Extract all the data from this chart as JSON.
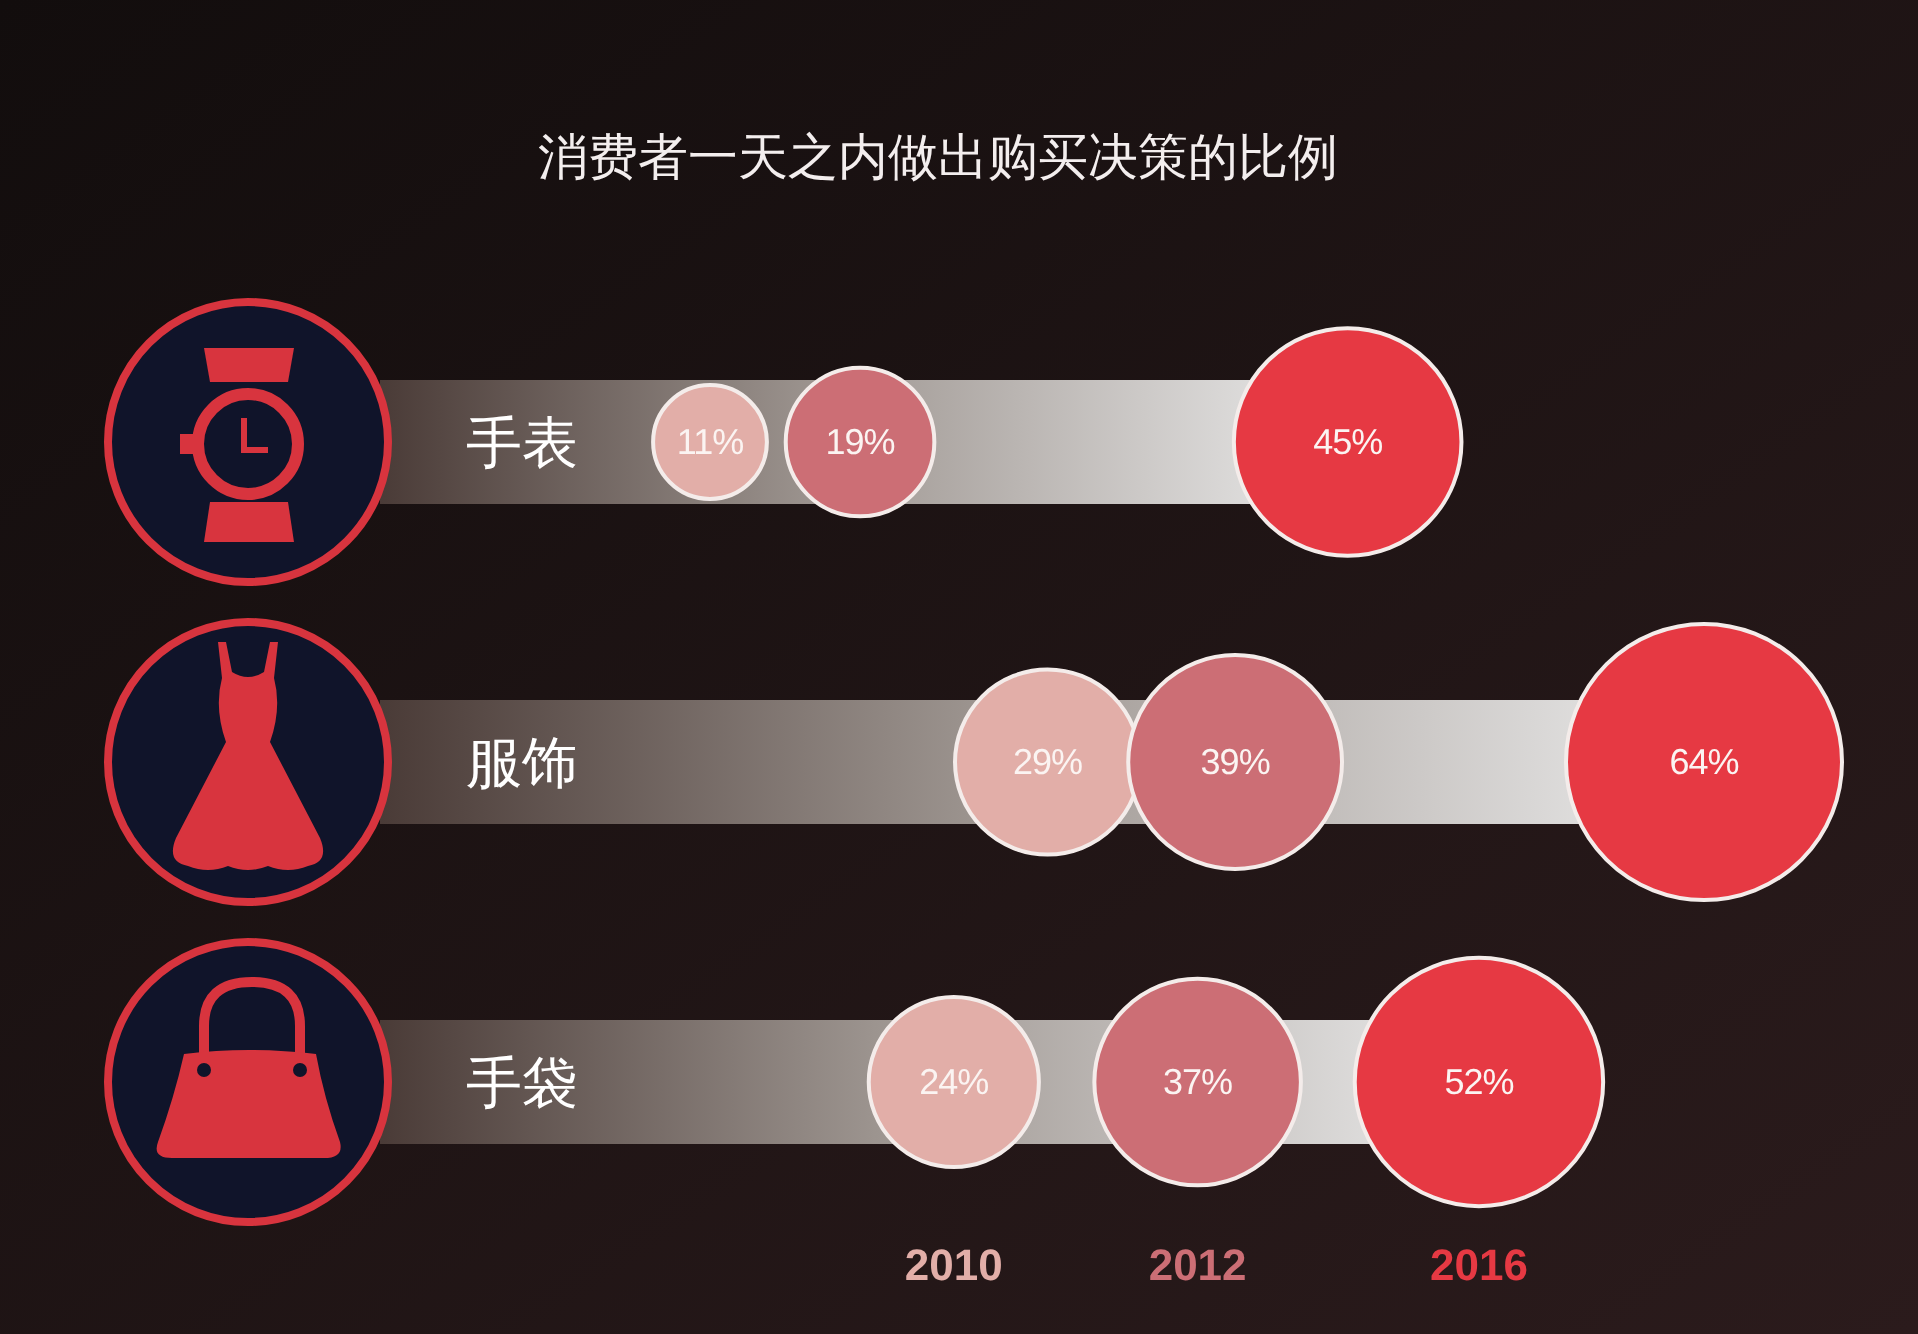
{
  "chart_data": {
    "type": "bubble",
    "title": "消费者一天之内做出购买决策的比例",
    "orientation": "horizontal",
    "categories": [
      "手表",
      "服饰",
      "手袋"
    ],
    "series": [
      {
        "name": "2010",
        "color": "#e2aea8",
        "values": [
          11,
          29,
          24
        ],
        "sizes": [
          0.17,
          0.45,
          0.38
        ],
        "value_labels": [
          "11%",
          "29%",
          "24%"
        ]
      },
      {
        "name": "2012",
        "color": "#cc6e75",
        "values": [
          19,
          39,
          37
        ],
        "sizes": [
          0.29,
          0.6,
          0.56
        ],
        "value_labels": [
          "19%",
          "39%",
          "37%"
        ]
      },
      {
        "name": "2016",
        "color": "#e63943",
        "values": [
          45,
          64,
          52
        ],
        "sizes": [
          0.68,
          1,
          0.81
        ],
        "value_labels": [
          "45%",
          "64%",
          "52%"
        ]
      }
    ],
    "tick_labels": "y",
    "legend": "bottom"
  }
}
